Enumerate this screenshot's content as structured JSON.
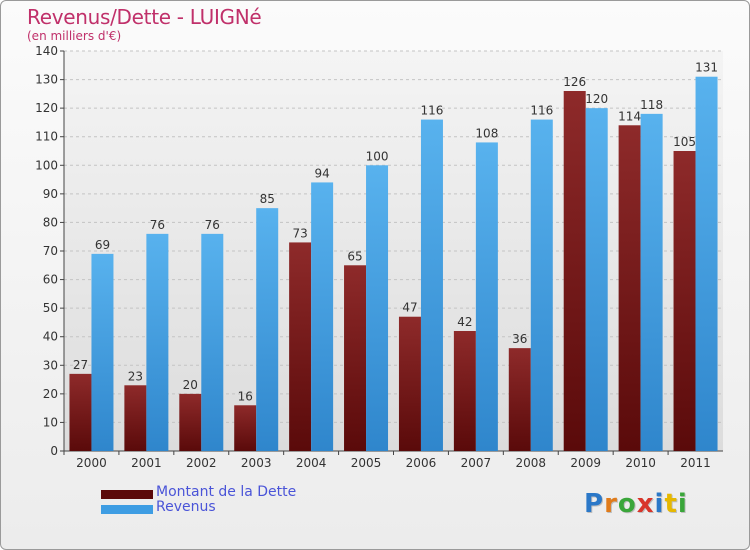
{
  "header": {
    "title": "Revenus/Dette - LUIGNé",
    "subtitle": "(en milliers d'€)"
  },
  "chart_data": {
    "type": "bar",
    "title": "Revenus/Dette - LUIGNé",
    "subtitle": "(en milliers d'€)",
    "xlabel": "",
    "ylabel": "",
    "ylim": [
      0,
      140
    ],
    "yticks": [
      0,
      10,
      20,
      30,
      40,
      50,
      60,
      70,
      80,
      90,
      100,
      110,
      120,
      130,
      140
    ],
    "grid": true,
    "legend_position": "bottom-left",
    "categories": [
      "2000",
      "2001",
      "2002",
      "2003",
      "2004",
      "2005",
      "2006",
      "2007",
      "2008",
      "2009",
      "2010",
      "2011"
    ],
    "series": [
      {
        "name": "Montant de la Dette",
        "color": "#7a1f1f",
        "values": [
          27,
          23,
          20,
          16,
          73,
          65,
          47,
          42,
          36,
          126,
          114,
          105
        ]
      },
      {
        "name": "Revenus",
        "color": "#3e9de3",
        "values": [
          69,
          76,
          76,
          85,
          94,
          100,
          116,
          108,
          116,
          120,
          118,
          131
        ]
      }
    ]
  },
  "legend": {
    "items": [
      {
        "label": "Montant de la Dette",
        "color": "#5c0a0a"
      },
      {
        "label": "Revenus",
        "color": "#3e9de3"
      }
    ]
  },
  "logo": {
    "letters": [
      "P",
      "r",
      "o",
      "x",
      "i",
      "t",
      "i"
    ],
    "colors": [
      "#2b78c8",
      "#e07b1a",
      "#3aa63a",
      "#d8352a",
      "#2b78c8",
      "#e6b800",
      "#3aa63a"
    ]
  }
}
